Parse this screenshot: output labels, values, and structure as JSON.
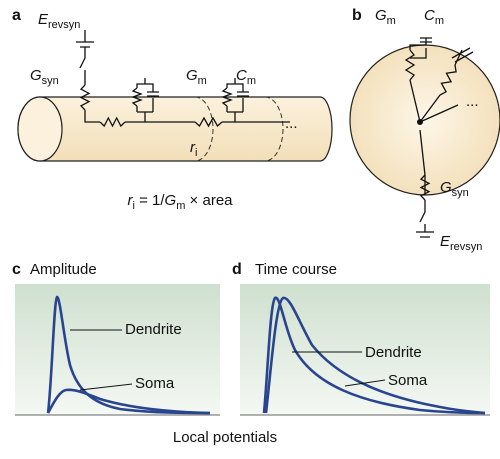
{
  "panels": {
    "a": {
      "label": "a",
      "e_revsyn": {
        "main": "E",
        "sub": "revsyn"
      },
      "g_syn": {
        "main": "G",
        "sub": "syn"
      },
      "g_m": {
        "main": "G",
        "sub": "m"
      },
      "c_m": {
        "main": "C",
        "sub": "m"
      },
      "r_i": {
        "main": "r",
        "sub": "i"
      },
      "ellipsis": "...",
      "equation": {
        "r": "r",
        "r_sub": "i",
        "mid": " = 1/",
        "g": "G",
        "g_sub": "m",
        "end": " × area"
      }
    },
    "b": {
      "label": "b",
      "g_m": {
        "main": "G",
        "sub": "m"
      },
      "c_m": {
        "main": "C",
        "sub": "m"
      },
      "ellipsis": "...",
      "g_syn": {
        "main": "G",
        "sub": "syn"
      },
      "e_revsyn": {
        "main": "E",
        "sub": "revsyn"
      }
    },
    "c": {
      "label": "c",
      "title": "Amplitude",
      "dendrite": "Dendrite",
      "soma": "Soma"
    },
    "d": {
      "label": "d",
      "title": "Time course",
      "dendrite": "Dendrite",
      "soma": "Soma"
    }
  },
  "caption": "Local potentials"
}
